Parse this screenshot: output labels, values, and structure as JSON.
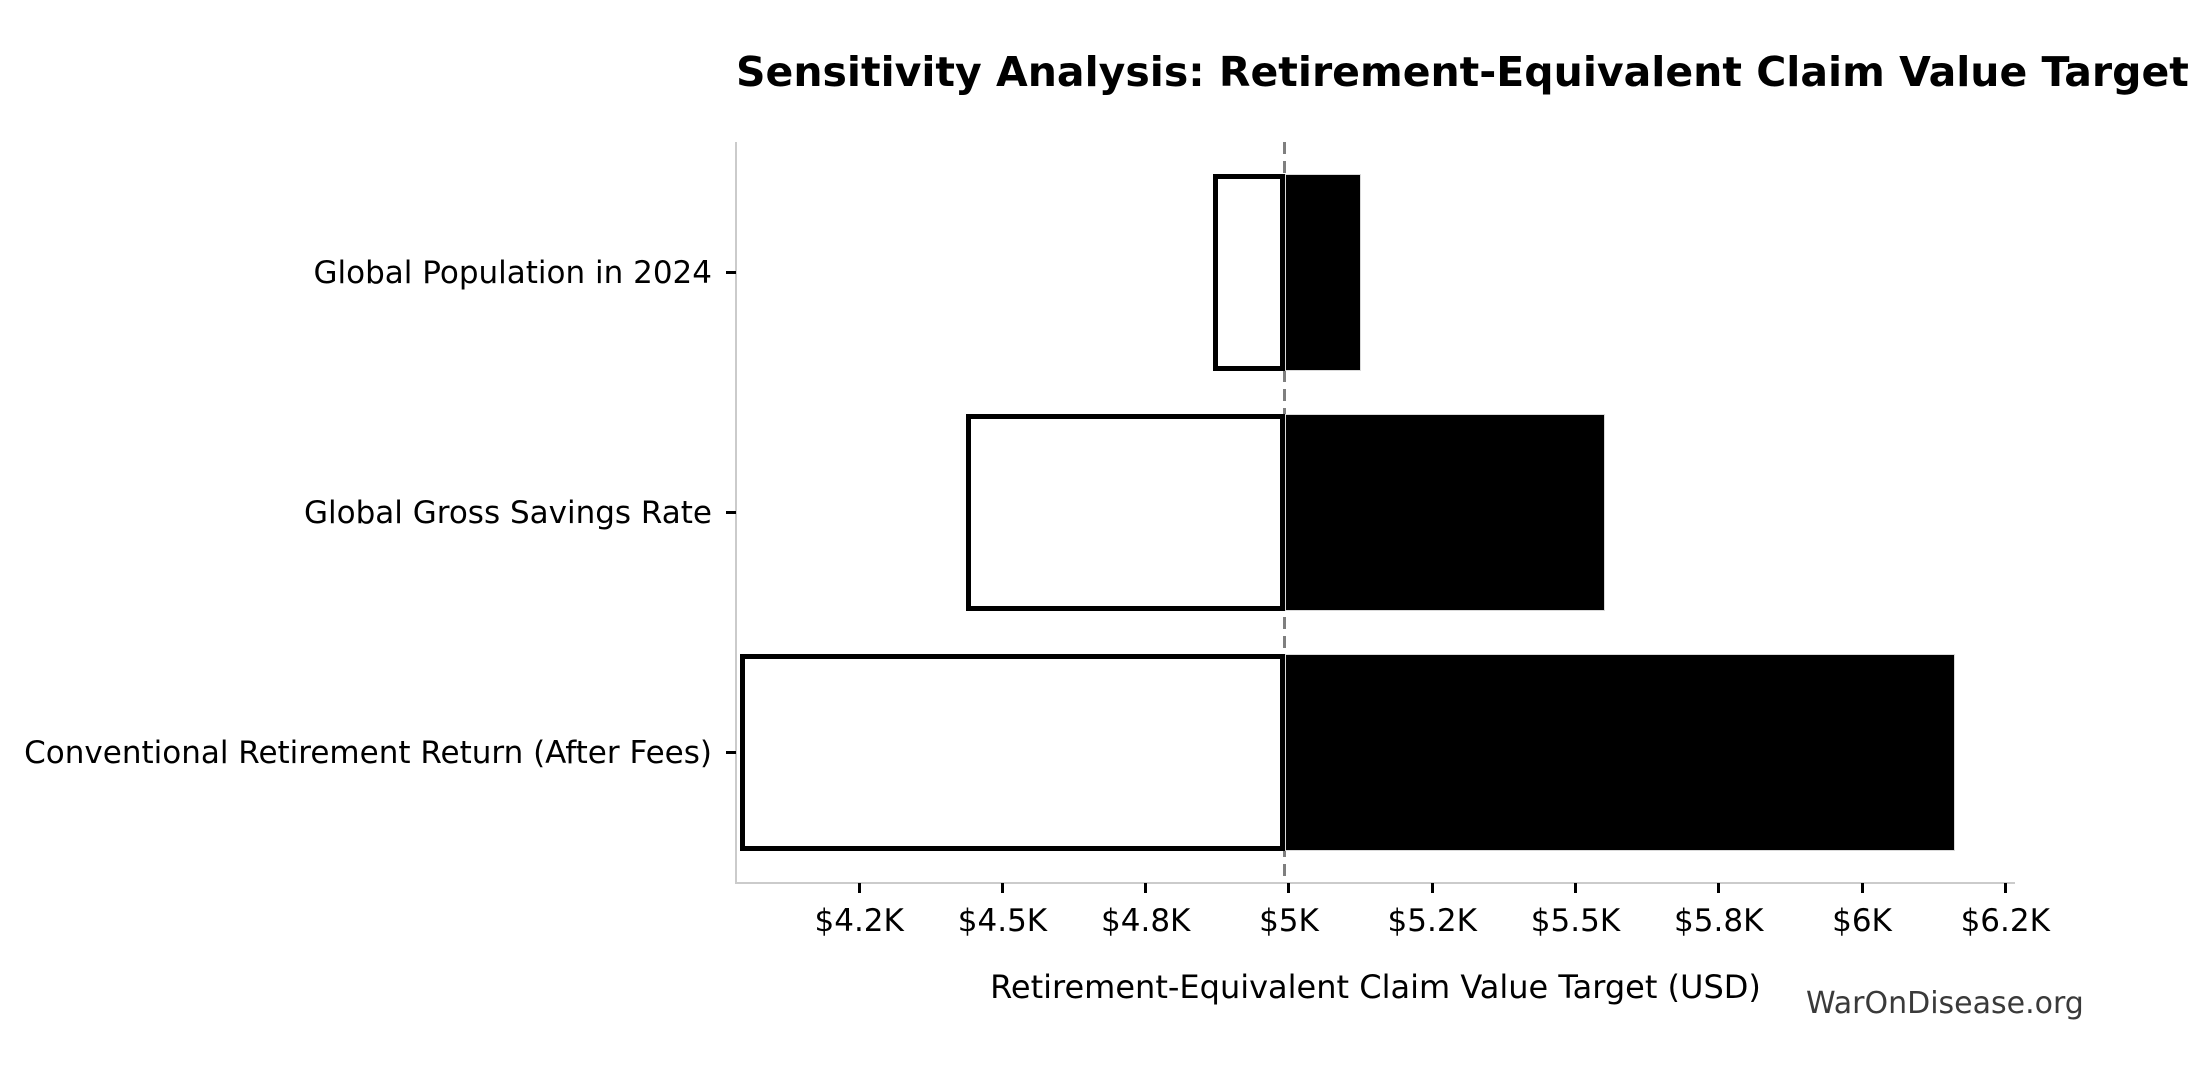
{
  "chart_data": {
    "type": "bar",
    "subtype": "tornado-sensitivity",
    "orientation": "horizontal",
    "title": "Sensitivity Analysis: Retirement-Equivalent Claim Value Target",
    "xlabel": "Retirement-Equivalent Claim Value Target (USD)",
    "watermark": "WarOnDisease.org",
    "baseline_value": 4993,
    "xlim": [
      4035,
      6267
    ],
    "grid": false,
    "legend": "none",
    "x_ticks": [
      {
        "value": 4250,
        "label": "$4.2K"
      },
      {
        "value": 4500,
        "label": "$4.5K"
      },
      {
        "value": 4750,
        "label": "$4.8K"
      },
      {
        "value": 5000,
        "label": "$5K"
      },
      {
        "value": 5250,
        "label": "$5.2K"
      },
      {
        "value": 5500,
        "label": "$5.5K"
      },
      {
        "value": 5750,
        "label": "$5.8K"
      },
      {
        "value": 6000,
        "label": "$6K"
      },
      {
        "value": 6250,
        "label": "$6.2K"
      }
    ],
    "rows": [
      {
        "label": "Global Population in 2024",
        "low": 4867,
        "high": 5126
      },
      {
        "label": "Global Gross Savings Rate",
        "low": 4436,
        "high": 5552
      },
      {
        "label": "Conventional Retirement Return (After Fees)",
        "low": 4042,
        "high": 6162
      }
    ],
    "colors": {
      "low_fill": "#ffffff",
      "high_fill": "#000000",
      "bar_edge": "#000000",
      "baseline_line": "#7f7f7f",
      "spine": "#cbcbcb",
      "text": "#000000",
      "watermark_text": "#3a3a3a"
    }
  }
}
